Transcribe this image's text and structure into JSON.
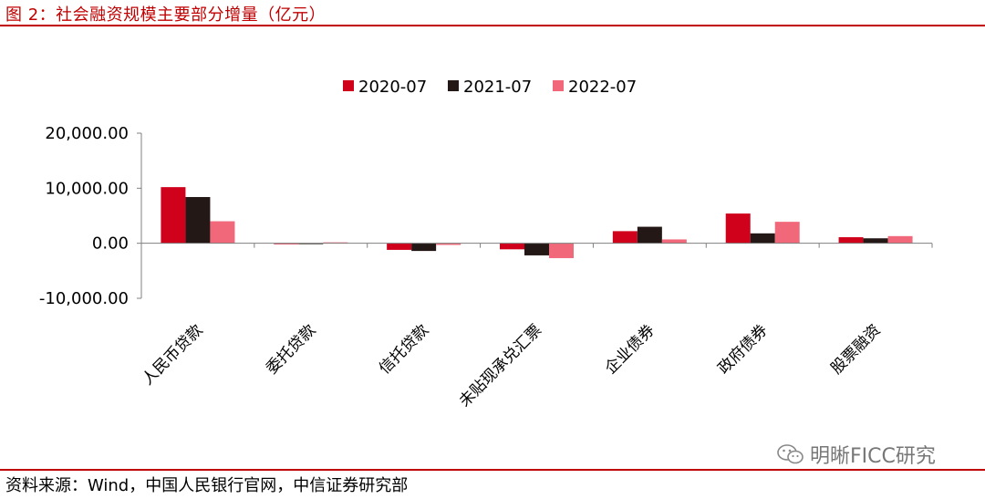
{
  "title": "图 2：社会融资规模主要部分增量（亿元）",
  "source": "资料来源：Wind，中国人民银行官网，中信证券研究部",
  "watermark": {
    "text": "明晰FICC研究",
    "icon": "wechat-icon"
  },
  "colors": {
    "accent": "#c00000"
  },
  "chart_data": {
    "type": "bar",
    "title": "",
    "xlabel": "",
    "ylabel": "",
    "ylim": [
      -10000,
      20000
    ],
    "yticks": [
      -10000,
      0,
      10000,
      20000
    ],
    "ytick_labels": [
      "-10,000.00",
      "0.00",
      "10,000.00",
      "20,000.00"
    ],
    "categories": [
      "人民币贷款",
      "委托贷款",
      "信托贷款",
      "未贴现承兑汇票",
      "企业债券",
      "政府债券",
      "股票融资"
    ],
    "series": [
      {
        "name": "2020-07",
        "color": "#d0021b",
        "values": [
          10200,
          -100,
          -1200,
          -1100,
          2200,
          5400,
          1100
        ]
      },
      {
        "name": "2021-07",
        "color": "#231815",
        "values": [
          8400,
          -150,
          -1400,
          -2200,
          3000,
          1800,
          900
        ]
      },
      {
        "name": "2022-07",
        "color": "#f0687a",
        "values": [
          4000,
          50,
          -300,
          -2700,
          700,
          3900,
          1300
        ]
      }
    ],
    "legend_position": "top-center",
    "grid": false
  }
}
